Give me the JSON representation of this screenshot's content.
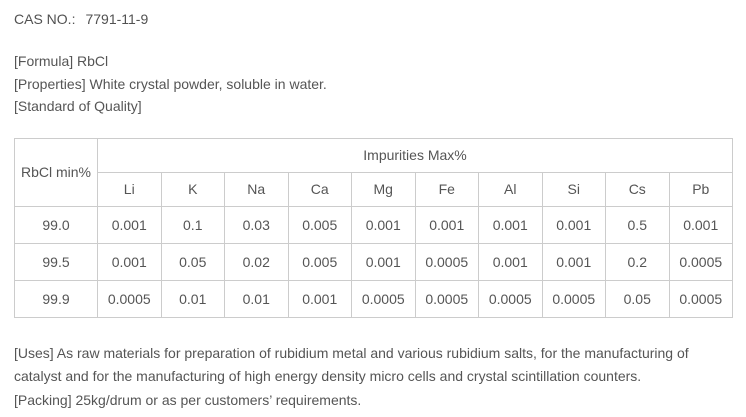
{
  "document": {
    "cas": {
      "label": "CAS NO.:",
      "value": "7791-11-9"
    },
    "info": {
      "formula": "[Formula] RbCl",
      "properties": "[Properties] White crystal powder, soluble in water.",
      "standard": "[Standard of Quality]"
    },
    "table": {
      "corner_header": "RbCl min%",
      "group_header": "Impurities Max%",
      "element_headers": [
        "Li",
        "K",
        "Na",
        "Ca",
        "Mg",
        "Fe",
        "Al",
        "Si",
        "Cs",
        "Pb"
      ],
      "rows": [
        {
          "grade": "99.0",
          "values": [
            "0.001",
            "0.1",
            "0.03",
            "0.005",
            "0.001",
            "0.001",
            "0.001",
            "0.001",
            "0.5",
            "0.001"
          ]
        },
        {
          "grade": "99.5",
          "values": [
            "0.001",
            "0.05",
            "0.02",
            "0.005",
            "0.001",
            "0.0005",
            "0.001",
            "0.001",
            "0.2",
            "0.0005"
          ]
        },
        {
          "grade": "99.9",
          "values": [
            "0.0005",
            "0.01",
            "0.01",
            "0.001",
            "0.0005",
            "0.0005",
            "0.0005",
            "0.0005",
            "0.05",
            "0.0005"
          ]
        }
      ]
    },
    "footer": {
      "uses": "[Uses] As raw materials for preparation of rubidium metal and various rubidium salts, for the manufacturing of catalyst and for the manufacturing of high energy density micro cells and crystal scintillation counters.",
      "packing": "[Packing] 25kg/drum or as per customers’ requirements."
    },
    "colors": {
      "text": "#555555",
      "border": "#cccccc",
      "background": "#ffffff"
    }
  }
}
